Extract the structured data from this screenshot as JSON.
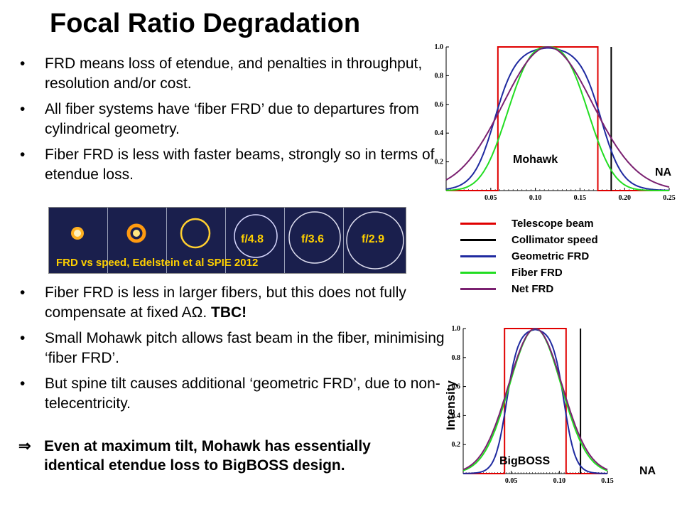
{
  "title": "Focal Ratio Degradation",
  "bullets_top": [
    "FRD means loss of etendue, and penalties in throughput, resolution and/or cost.",
    "All fiber systems have ‘fiber FRD’ due to departures from cylindrical geometry.",
    "Fiber FRD is less with faster beams, strongly so in terms of etendue loss."
  ],
  "bullets_bottom": {
    "b0_text": "Fiber FRD is less in larger fibers, but this does not fully compensate at fixed AΩ. ",
    "b0_strong": "TBC!",
    "b1": "Small Mohawk pitch allows fast beam in the fiber, minimising ‘fiber FRD’.",
    "b2": "But spine tilt causes additional ‘geometric FRD’, due to non-telecentricity."
  },
  "bullet_char": "•",
  "conclusion_arrow": "⇒",
  "conclusion": "Even at maximum tilt, Mohawk has essentially identical etendue loss to BigBOSS design.",
  "image_strip": {
    "labels": [
      "f/4.8",
      "f/3.6",
      "f/2.9"
    ],
    "caption": "FRD vs speed, Edelstein et al SPIE 2012"
  },
  "legend": [
    {
      "label": "Telescope beam",
      "color": "#e00000"
    },
    {
      "label": "Collimator speed",
      "color": "#000000"
    },
    {
      "label": "Geometric FRD",
      "color": "#1f2aa0"
    },
    {
      "label": "Fiber FRD",
      "color": "#22dd22"
    },
    {
      "label": "Net FRD",
      "color": "#7a2070"
    }
  ],
  "plot_top": {
    "label": "Mohawk",
    "na_label": "NA",
    "x_ticks": [
      "0.05",
      "0.10",
      "0.15",
      "0.20",
      "0.25"
    ],
    "y_ticks": [
      "0.2",
      "0.4",
      "0.6",
      "0.8",
      "1.0"
    ]
  },
  "plot_bottom": {
    "label": "BigBOSS",
    "na_label": "NA",
    "ylabel": "Intensity",
    "x_ticks": [
      "0.05",
      "0.10",
      "0.15"
    ],
    "y_ticks": [
      "0.2",
      "0.4",
      "0.6",
      "0.8",
      "1.0"
    ]
  },
  "chart_data": [
    {
      "type": "line",
      "title": "Mohawk",
      "xlabel": "NA",
      "ylabel": "",
      "xlim": [
        0.0,
        0.25
      ],
      "ylim": [
        0,
        1.0
      ],
      "series": [
        {
          "name": "Telescope beam",
          "color": "#e00000",
          "kind": "tophat",
          "x0": 0.058,
          "x1": 0.17
        },
        {
          "name": "Collimator speed",
          "color": "#000000",
          "kind": "vline",
          "x": 0.185
        },
        {
          "name": "Geometric FRD",
          "color": "#1f2aa0",
          "kind": "smooth",
          "center": 0.114,
          "half_width": 0.06,
          "edge_width": 0.012,
          "power": 4
        },
        {
          "name": "Fiber FRD",
          "color": "#22dd22",
          "kind": "gauss",
          "center": 0.114,
          "sigma": 0.042,
          "power": 2.6
        },
        {
          "name": "Net FRD",
          "color": "#7a2070",
          "kind": "gauss",
          "center": 0.114,
          "sigma": 0.05,
          "power": 2
        }
      ]
    },
    {
      "type": "line",
      "title": "BigBOSS",
      "xlabel": "NA",
      "ylabel": "Intensity",
      "xlim": [
        0.0,
        0.15
      ],
      "ylim": [
        0,
        1.0
      ],
      "series": [
        {
          "name": "Telescope beam",
          "color": "#e00000",
          "kind": "tophat",
          "x0": 0.043,
          "x1": 0.107
        },
        {
          "name": "Collimator speed",
          "color": "#000000",
          "kind": "vline",
          "x": 0.122
        },
        {
          "name": "Geometric FRD",
          "color": "#1f2aa0",
          "kind": "smooth",
          "center": 0.075,
          "half_width": 0.03,
          "edge_width": 0.006,
          "power": 4
        },
        {
          "name": "Fiber FRD",
          "color": "#22dd22",
          "kind": "gauss",
          "center": 0.075,
          "sigma": 0.027,
          "power": 2
        },
        {
          "name": "Net FRD",
          "color": "#7a2070",
          "kind": "gauss",
          "center": 0.075,
          "sigma": 0.028,
          "power": 2
        }
      ]
    }
  ]
}
